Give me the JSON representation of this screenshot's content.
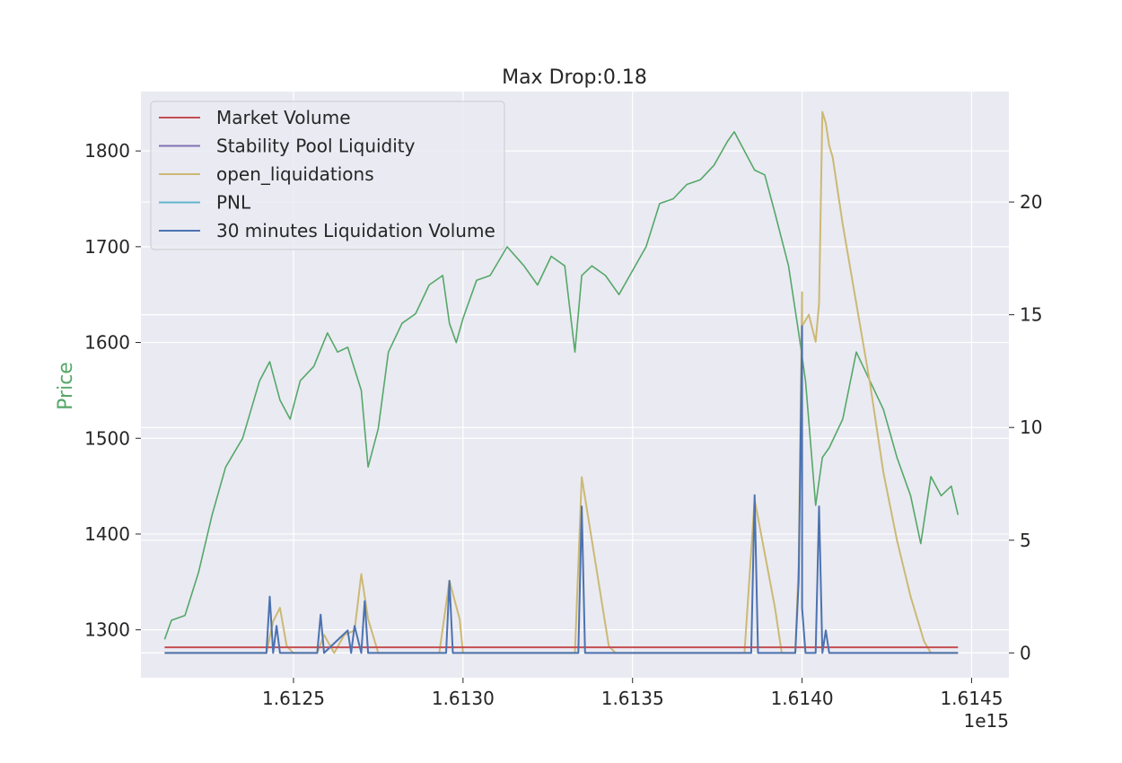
{
  "chart_data": {
    "type": "line",
    "title": "Max Drop:0.18",
    "ylabel": "Price",
    "ylabel_color": "#55a868",
    "x_offset_label": "1e15",
    "x_ticks": [
      "1.6125",
      "1.6130",
      "1.6135",
      "1.6140",
      "1.6145"
    ],
    "x_tick_values": [
      1.6125,
      1.613,
      1.6135,
      1.614,
      1.6145
    ],
    "xlim": [
      1.61205,
      1.61461
    ],
    "y_left_ticks": [
      "1300",
      "1400",
      "1500",
      "1600",
      "1700",
      "1800"
    ],
    "y_left_tick_values": [
      1300,
      1400,
      1500,
      1600,
      1700,
      1800
    ],
    "ylim_left": [
      1250,
      1862
    ],
    "y_right_ticks": [
      "0",
      "5",
      "10",
      "15",
      "20"
    ],
    "y_right_tick_values": [
      0,
      5,
      10,
      15,
      20
    ],
    "ylim_right": [
      -1.1,
      24.9
    ],
    "grid": true,
    "background": "#eaeaf2",
    "legend_position": "upper-left",
    "legend": [
      {
        "name": "Market Volume",
        "color": "#c44e52"
      },
      {
        "name": "Stability Pool Liquidity",
        "color": "#8172b3"
      },
      {
        "name": "open_liquidations",
        "color": "#ccb974"
      },
      {
        "name": "PNL",
        "color": "#64b5cd"
      },
      {
        "name": "30 minutes Liquidation Volume",
        "color": "#4c72b0"
      }
    ],
    "series": [
      {
        "name": "Price",
        "axis": "left",
        "color": "#55a868",
        "x": [
          1.61212,
          1.61214,
          1.61218,
          1.61222,
          1.61226,
          1.6123,
          1.61235,
          1.6124,
          1.61243,
          1.61246,
          1.61249,
          1.61252,
          1.61256,
          1.6126,
          1.61263,
          1.61266,
          1.6127,
          1.61272,
          1.61275,
          1.61278,
          1.61282,
          1.61286,
          1.6129,
          1.61294,
          1.61296,
          1.61298,
          1.613,
          1.61304,
          1.61308,
          1.61313,
          1.61318,
          1.61322,
          1.61326,
          1.6133,
          1.61333,
          1.61335,
          1.61338,
          1.61342,
          1.61346,
          1.6135,
          1.61354,
          1.61358,
          1.61362,
          1.61366,
          1.6137,
          1.61374,
          1.61378,
          1.6138,
          1.61383,
          1.61386,
          1.61389,
          1.61392,
          1.61396,
          1.61399,
          1.61401,
          1.61404,
          1.61406,
          1.61408,
          1.61412,
          1.61416,
          1.6142,
          1.61424,
          1.61428,
          1.61432,
          1.61435,
          1.61438,
          1.61441,
          1.61444,
          1.61446
        ],
        "values": [
          1290,
          1310,
          1315,
          1360,
          1420,
          1470,
          1500,
          1560,
          1580,
          1540,
          1520,
          1560,
          1575,
          1610,
          1590,
          1595,
          1550,
          1470,
          1510,
          1590,
          1620,
          1630,
          1660,
          1670,
          1620,
          1600,
          1625,
          1665,
          1670,
          1700,
          1680,
          1660,
          1690,
          1680,
          1590,
          1670,
          1680,
          1670,
          1650,
          1675,
          1700,
          1745,
          1750,
          1765,
          1770,
          1785,
          1810,
          1820,
          1800,
          1780,
          1775,
          1735,
          1680,
          1610,
          1560,
          1430,
          1480,
          1490,
          1520,
          1590,
          1560,
          1530,
          1480,
          1440,
          1390,
          1460,
          1440,
          1450,
          1420
        ]
      },
      {
        "name": "open_liquidations",
        "axis": "right",
        "color": "#ccb974",
        "x": [
          1.61212,
          1.61242,
          1.61244,
          1.61246,
          1.61248,
          1.6125,
          1.61257,
          1.61259,
          1.61262,
          1.61265,
          1.61268,
          1.6127,
          1.61272,
          1.61275,
          1.61293,
          1.61296,
          1.61299,
          1.613,
          1.61333,
          1.61335,
          1.61343,
          1.61345,
          1.61383,
          1.61386,
          1.61392,
          1.61394,
          1.61398,
          1.61399,
          1.614,
          1.614,
          1.61402,
          1.61404,
          1.61405,
          1.61406,
          1.61407,
          1.61408,
          1.61409,
          1.61412,
          1.61416,
          1.6142,
          1.61424,
          1.61428,
          1.61432,
          1.61436,
          1.61438,
          1.6144,
          1.61446
        ],
        "values": [
          0,
          0,
          1.4,
          2.0,
          0.3,
          0,
          0,
          0.8,
          0,
          0.8,
          1.0,
          3.5,
          1.5,
          0,
          0,
          3.2,
          1.5,
          0,
          0,
          7.8,
          0.3,
          0,
          0,
          6.8,
          2.0,
          0,
          0,
          4.0,
          16.0,
          14.5,
          15.0,
          13.8,
          15.5,
          24.0,
          23.5,
          22.5,
          22.0,
          19.0,
          15.5,
          12.0,
          8.0,
          5.0,
          2.5,
          0.5,
          0,
          0,
          0
        ]
      },
      {
        "name": "Market Volume",
        "axis": "right",
        "color": "#c44e52",
        "x": [
          1.61212,
          1.61446
        ],
        "values": [
          0.25,
          0.25
        ]
      },
      {
        "name": "30 minutes Liquidation Volume",
        "axis": "right",
        "color": "#4c72b0",
        "x": [
          1.61212,
          1.61242,
          1.61243,
          1.61244,
          1.61245,
          1.61246,
          1.61257,
          1.61258,
          1.61259,
          1.61266,
          1.61267,
          1.61268,
          1.6127,
          1.61271,
          1.61272,
          1.61295,
          1.61296,
          1.61297,
          1.61334,
          1.61335,
          1.61336,
          1.61385,
          1.61386,
          1.61387,
          1.61398,
          1.61399,
          1.614,
          1.614,
          1.61401,
          1.61404,
          1.61405,
          1.61406,
          1.61407,
          1.61408,
          1.61446
        ],
        "values": [
          0,
          0,
          2.5,
          0,
          1.2,
          0,
          0,
          1.7,
          0,
          1.0,
          0,
          1.2,
          0,
          2.3,
          0,
          0,
          3.2,
          0,
          0,
          6.5,
          0,
          0,
          7.0,
          0,
          0,
          3.2,
          14.5,
          2.0,
          0,
          0,
          6.5,
          0,
          1.0,
          0,
          0
        ]
      }
    ]
  }
}
